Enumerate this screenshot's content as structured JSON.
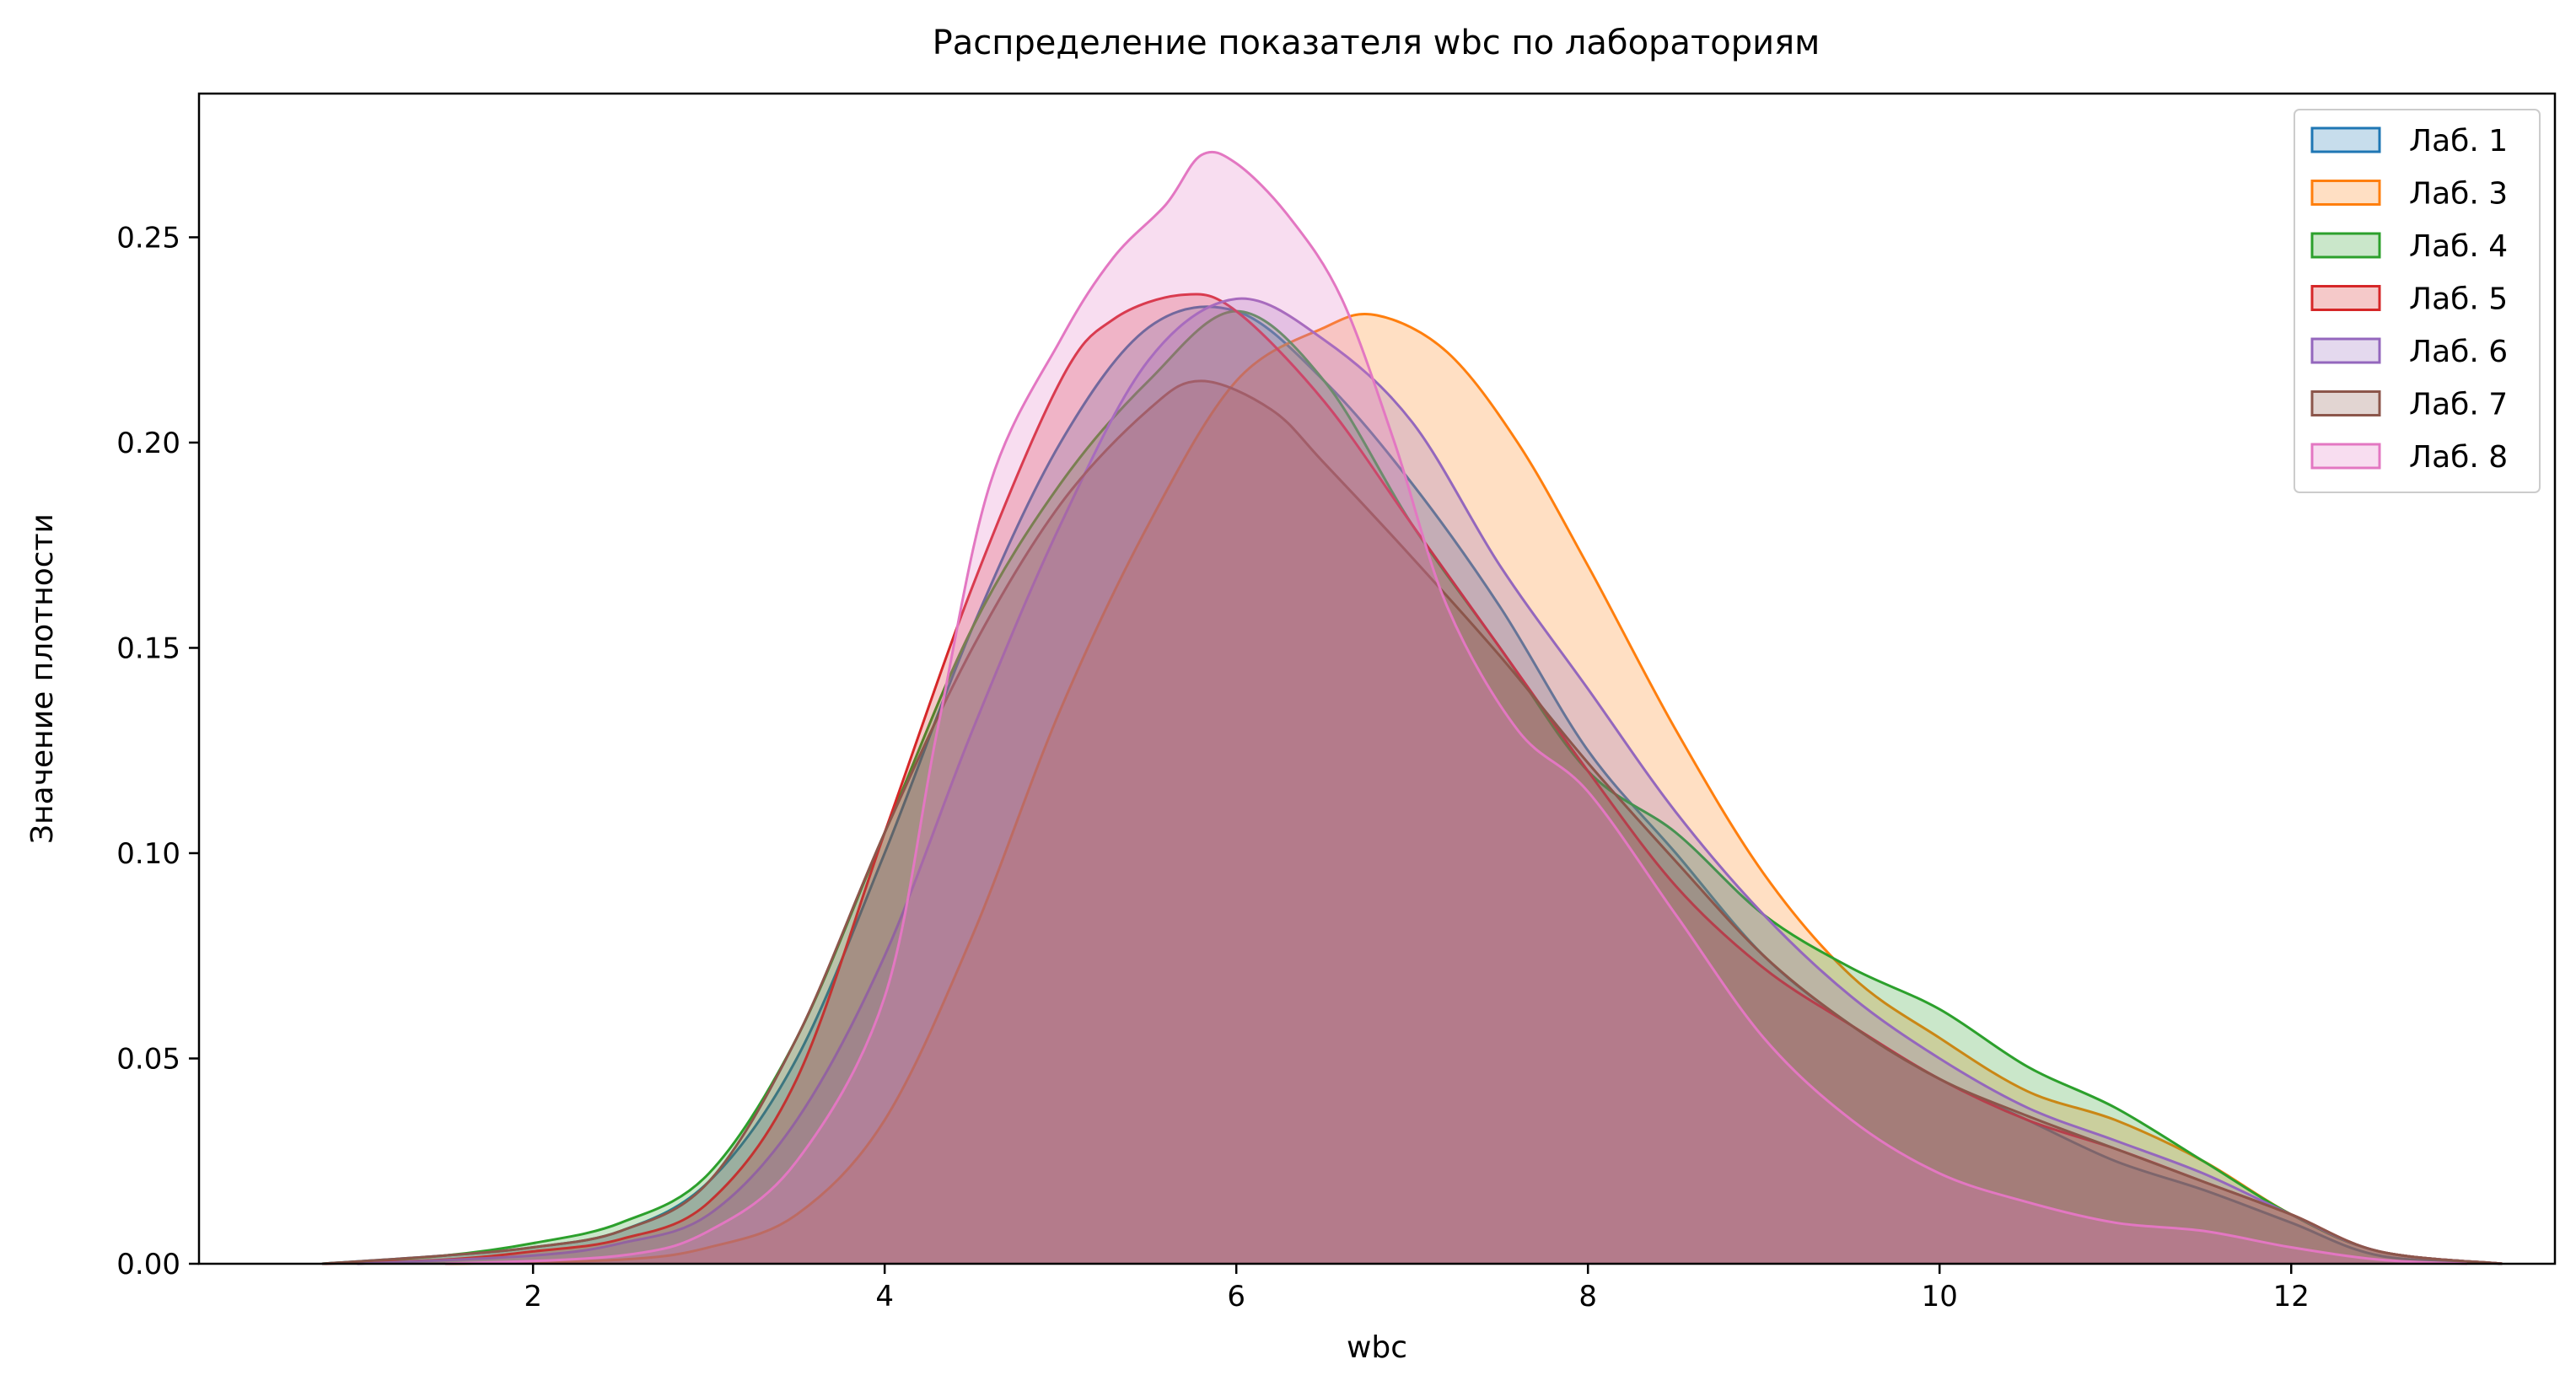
{
  "chart_data": {
    "type": "area",
    "title": "Распределение показателя wbc по лабораториям",
    "xlabel": "wbc",
    "ylabel": "Значение плотности",
    "xlim": [
      0.1,
      13.5
    ],
    "ylim": [
      0,
      0.285
    ],
    "x_ticks": [
      2,
      4,
      6,
      8,
      10,
      12
    ],
    "x_tick_labels": [
      "2",
      "4",
      "6",
      "8",
      "10",
      "12"
    ],
    "y_ticks": [
      0,
      0.05,
      0.1,
      0.15,
      0.2,
      0.25
    ],
    "y_tick_labels": [
      "0.00",
      "0.05",
      "0.10",
      "0.15",
      "0.20",
      "0.25"
    ],
    "grid": false,
    "legend_position": "top-right",
    "fill_opacity": 0.25,
    "series": [
      {
        "name": "Лаб. 1",
        "color": "#1f77b4",
        "x": [
          0.8,
          1.5,
          2.0,
          2.5,
          3.0,
          3.5,
          4.0,
          4.5,
          5.0,
          5.5,
          6.0,
          6.5,
          7.0,
          7.5,
          8.0,
          8.5,
          9.0,
          9.5,
          10.0,
          10.5,
          11.0,
          11.5,
          12.0,
          12.5,
          13.2
        ],
        "y": [
          0.0,
          0.002,
          0.004,
          0.008,
          0.02,
          0.05,
          0.1,
          0.155,
          0.2,
          0.228,
          0.232,
          0.215,
          0.19,
          0.16,
          0.125,
          0.1,
          0.075,
          0.058,
          0.045,
          0.035,
          0.025,
          0.018,
          0.01,
          0.002,
          0.0
        ]
      },
      {
        "name": "Лаб. 3",
        "color": "#ff7f0e",
        "x": [
          1.5,
          2.5,
          3.0,
          3.5,
          4.0,
          4.5,
          5.0,
          5.5,
          6.0,
          6.5,
          6.8,
          7.2,
          7.6,
          8.0,
          8.5,
          9.0,
          9.5,
          10.0,
          10.5,
          11.0,
          11.5,
          12.0,
          12.5,
          13.2
        ],
        "y": [
          0.0,
          0.001,
          0.004,
          0.012,
          0.035,
          0.08,
          0.135,
          0.18,
          0.215,
          0.228,
          0.231,
          0.222,
          0.2,
          0.17,
          0.13,
          0.095,
          0.07,
          0.055,
          0.042,
          0.035,
          0.025,
          0.012,
          0.003,
          0.0
        ]
      },
      {
        "name": "Лаб. 4",
        "color": "#2ca02c",
        "x": [
          0.8,
          1.5,
          2.0,
          2.5,
          3.0,
          3.5,
          4.0,
          4.5,
          5.0,
          5.5,
          6.0,
          6.5,
          7.0,
          7.5,
          8.0,
          8.5,
          9.0,
          9.5,
          10.0,
          10.5,
          11.0,
          11.5,
          12.0,
          12.5,
          13.2
        ],
        "y": [
          0.0,
          0.002,
          0.005,
          0.01,
          0.022,
          0.055,
          0.105,
          0.155,
          0.19,
          0.215,
          0.232,
          0.215,
          0.18,
          0.15,
          0.12,
          0.105,
          0.085,
          0.072,
          0.062,
          0.048,
          0.038,
          0.025,
          0.012,
          0.003,
          0.0
        ]
      },
      {
        "name": "Лаб. 5",
        "color": "#d62728",
        "x": [
          0.8,
          1.5,
          2.0,
          2.5,
          3.0,
          3.5,
          4.0,
          4.5,
          5.0,
          5.3,
          5.7,
          6.0,
          6.5,
          7.0,
          7.5,
          8.0,
          8.5,
          9.0,
          9.5,
          10.0,
          10.5,
          11.0,
          11.5,
          12.0,
          12.5,
          13.2
        ],
        "y": [
          0.0,
          0.001,
          0.003,
          0.006,
          0.015,
          0.045,
          0.105,
          0.165,
          0.215,
          0.23,
          0.236,
          0.232,
          0.21,
          0.18,
          0.15,
          0.12,
          0.092,
          0.072,
          0.058,
          0.045,
          0.035,
          0.028,
          0.02,
          0.012,
          0.003,
          0.0
        ]
      },
      {
        "name": "Лаб. 6",
        "color": "#9467bd",
        "x": [
          1.0,
          2.0,
          2.5,
          3.0,
          3.5,
          4.0,
          4.5,
          5.0,
          5.5,
          6.0,
          6.5,
          7.0,
          7.5,
          8.0,
          8.5,
          9.0,
          9.5,
          10.0,
          10.5,
          11.0,
          11.5,
          12.0,
          12.5,
          13.2
        ],
        "y": [
          0.0,
          0.002,
          0.005,
          0.012,
          0.035,
          0.075,
          0.13,
          0.18,
          0.22,
          0.235,
          0.225,
          0.205,
          0.17,
          0.14,
          0.11,
          0.085,
          0.065,
          0.05,
          0.038,
          0.03,
          0.022,
          0.012,
          0.003,
          0.0
        ]
      },
      {
        "name": "Лаб. 7",
        "color": "#8c564b",
        "x": [
          0.8,
          1.5,
          2.0,
          2.5,
          3.0,
          3.5,
          4.0,
          4.5,
          5.0,
          5.5,
          5.8,
          6.2,
          6.5,
          7.0,
          7.5,
          8.0,
          8.5,
          9.0,
          9.5,
          10.0,
          10.5,
          11.0,
          11.5,
          12.0,
          12.5,
          13.2
        ],
        "y": [
          0.0,
          0.002,
          0.004,
          0.008,
          0.02,
          0.055,
          0.105,
          0.15,
          0.185,
          0.208,
          0.215,
          0.208,
          0.195,
          0.172,
          0.148,
          0.122,
          0.098,
          0.075,
          0.058,
          0.045,
          0.036,
          0.028,
          0.02,
          0.012,
          0.003,
          0.0
        ]
      },
      {
        "name": "Лаб. 8",
        "color": "#e377c2",
        "x": [
          1.5,
          2.5,
          3.0,
          3.5,
          4.0,
          4.3,
          4.6,
          5.0,
          5.3,
          5.6,
          5.8,
          6.0,
          6.3,
          6.6,
          6.9,
          7.2,
          7.6,
          8.0,
          8.5,
          9.0,
          9.5,
          10.0,
          10.5,
          11.0,
          11.5,
          12.0,
          12.5,
          13.0
        ],
        "y": [
          0.0,
          0.002,
          0.008,
          0.025,
          0.065,
          0.13,
          0.19,
          0.225,
          0.245,
          0.258,
          0.27,
          0.268,
          0.255,
          0.235,
          0.2,
          0.16,
          0.13,
          0.115,
          0.085,
          0.055,
          0.035,
          0.022,
          0.015,
          0.01,
          0.008,
          0.004,
          0.001,
          0.0
        ]
      }
    ]
  }
}
